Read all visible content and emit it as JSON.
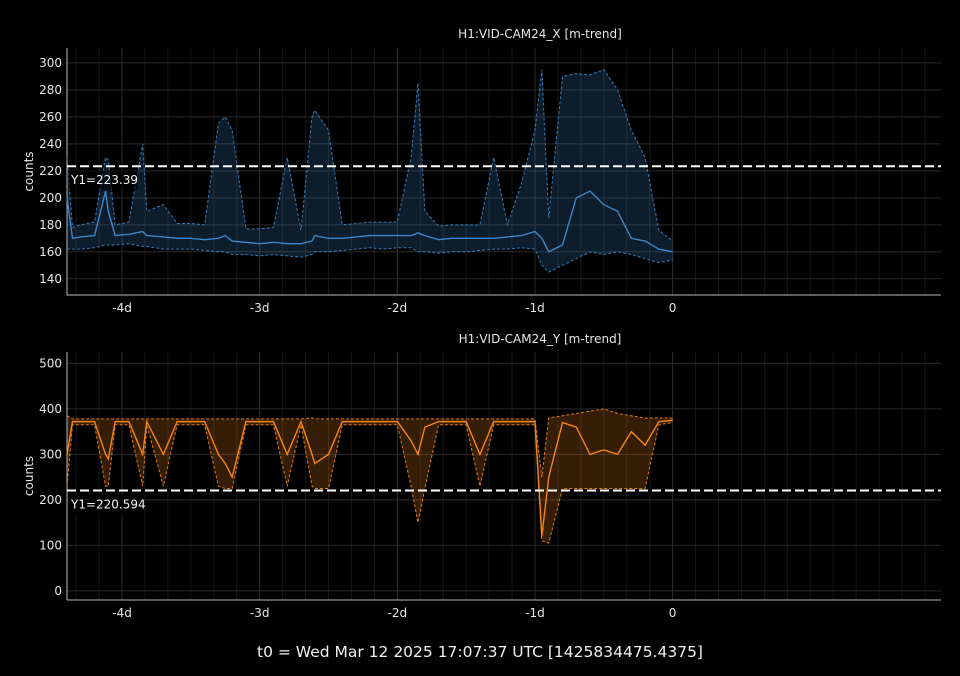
{
  "footer": "t0 = Wed Mar 12 2025 17:07:37 UTC [1425834475.4375]",
  "colors": {
    "x_series": "#3a86c8",
    "y_series": "#f58518",
    "background": "#000000",
    "grid": "#2a2a2a",
    "cursor": "#ffffff"
  },
  "chart_data": [
    {
      "type": "line",
      "title": "H1:VID-CAM24_X [m-trend]",
      "ylabel": "counts",
      "xlabel": "",
      "xlim": [
        -4.4,
        1.95
      ],
      "ylim": [
        128,
        311
      ],
      "x_ticks": [
        {
          "v": -4,
          "label": "-4d"
        },
        {
          "v": -3,
          "label": "-3d"
        },
        {
          "v": -2,
          "label": "-2d"
        },
        {
          "v": -1,
          "label": "-1d"
        },
        {
          "v": 0,
          "label": "0"
        }
      ],
      "y_ticks": [
        140,
        160,
        180,
        200,
        220,
        240,
        260,
        280,
        300
      ],
      "grid": true,
      "cursor": {
        "y": 223.39,
        "label": "Y1=223.39"
      },
      "series": [
        {
          "x": [
            -4.4,
            -4.36,
            -4.3,
            -4.2,
            -4.12,
            -4.1,
            -4.05,
            -3.95,
            -3.85,
            -3.82,
            -3.7,
            -3.6,
            -3.5,
            -3.4,
            -3.3,
            -3.25,
            -3.2,
            -3.1,
            -3.0,
            -2.9,
            -2.8,
            -2.7,
            -2.62,
            -2.6,
            -2.5,
            -2.4,
            -2.3,
            -2.2,
            -2.1,
            -2.0,
            -1.9,
            -1.85,
            -1.8,
            -1.7,
            -1.6,
            -1.5,
            -1.4,
            -1.3,
            -1.2,
            -1.1,
            -1.0,
            -0.95,
            -0.9,
            -0.8,
            -0.7,
            -0.6,
            -0.5,
            -0.4,
            -0.3,
            -0.2,
            -0.1,
            0.0
          ],
          "mean": [
            200,
            170,
            171,
            172,
            205,
            190,
            172,
            173,
            175,
            172,
            171,
            170,
            170,
            169,
            170,
            172,
            168,
            167,
            166,
            167,
            166,
            166,
            168,
            172,
            170,
            170,
            171,
            172,
            172,
            172,
            172,
            174,
            172,
            169,
            170,
            170,
            170,
            170,
            171,
            172,
            175,
            170,
            160,
            165,
            200,
            205,
            195,
            190,
            170,
            168,
            162,
            160
          ],
          "low": [
            162,
            162,
            162,
            163,
            165,
            165,
            165,
            166,
            164,
            164,
            162,
            162,
            162,
            161,
            160,
            160,
            158,
            158,
            157,
            158,
            157,
            156,
            158,
            160,
            160,
            161,
            162,
            163,
            162,
            163,
            163,
            160,
            160,
            159,
            160,
            160,
            161,
            162,
            162,
            163,
            162,
            150,
            145,
            150,
            155,
            160,
            158,
            160,
            158,
            155,
            152,
            154
          ],
          "high": [
            230,
            178,
            180,
            182,
            230,
            228,
            180,
            182,
            240,
            190,
            195,
            181,
            181,
            180,
            255,
            260,
            250,
            177,
            177,
            178,
            230,
            176,
            260,
            265,
            250,
            180,
            181,
            182,
            182,
            182,
            230,
            285,
            190,
            179,
            180,
            180,
            180,
            230,
            180,
            210,
            250,
            295,
            185,
            290,
            292,
            291,
            295,
            280,
            250,
            230,
            176,
            168
          ]
        }
      ]
    },
    {
      "type": "line",
      "title": "H1:VID-CAM24_Y [m-trend]",
      "ylabel": "counts",
      "xlabel": "",
      "xlim": [
        -4.4,
        1.95
      ],
      "ylim": [
        -20,
        525
      ],
      "x_ticks": [
        {
          "v": -4,
          "label": "-4d"
        },
        {
          "v": -3,
          "label": "-3d"
        },
        {
          "v": -2,
          "label": "-2d"
        },
        {
          "v": -1,
          "label": "-1d"
        },
        {
          "v": 0,
          "label": "0"
        }
      ],
      "y_ticks": [
        0,
        100,
        200,
        300,
        400,
        500
      ],
      "grid": true,
      "cursor": {
        "y": 220.594,
        "label": "Y1=220.594"
      },
      "series": [
        {
          "x": [
            -4.4,
            -4.36,
            -4.3,
            -4.2,
            -4.12,
            -4.1,
            -4.05,
            -3.95,
            -3.85,
            -3.82,
            -3.7,
            -3.6,
            -3.5,
            -3.4,
            -3.3,
            -3.25,
            -3.2,
            -3.1,
            -3.0,
            -2.9,
            -2.8,
            -2.7,
            -2.62,
            -2.6,
            -2.5,
            -2.4,
            -2.3,
            -2.2,
            -2.1,
            -2.0,
            -1.9,
            -1.85,
            -1.8,
            -1.7,
            -1.6,
            -1.5,
            -1.4,
            -1.3,
            -1.2,
            -1.1,
            -1.0,
            -0.95,
            -0.9,
            -0.8,
            -0.7,
            -0.6,
            -0.5,
            -0.4,
            -0.3,
            -0.2,
            -0.1,
            0.0
          ],
          "mean": [
            300,
            372,
            372,
            372,
            300,
            290,
            372,
            372,
            300,
            372,
            300,
            372,
            372,
            372,
            300,
            280,
            250,
            372,
            372,
            372,
            300,
            372,
            300,
            280,
            300,
            372,
            372,
            372,
            372,
            372,
            330,
            300,
            360,
            372,
            372,
            372,
            300,
            372,
            372,
            372,
            372,
            120,
            250,
            370,
            360,
            300,
            310,
            300,
            350,
            320,
            372,
            375
          ],
          "low": [
            230,
            365,
            365,
            365,
            230,
            230,
            365,
            365,
            230,
            365,
            230,
            365,
            365,
            365,
            230,
            225,
            225,
            365,
            365,
            365,
            230,
            365,
            230,
            225,
            225,
            365,
            365,
            365,
            365,
            365,
            230,
            150,
            225,
            365,
            365,
            365,
            230,
            365,
            365,
            365,
            365,
            110,
            105,
            225,
            225,
            225,
            225,
            225,
            225,
            225,
            365,
            370
          ],
          "high": [
            385,
            378,
            378,
            378,
            378,
            378,
            378,
            378,
            378,
            378,
            378,
            378,
            378,
            378,
            378,
            378,
            378,
            378,
            378,
            378,
            378,
            378,
            380,
            378,
            378,
            378,
            378,
            378,
            378,
            378,
            378,
            378,
            378,
            378,
            378,
            378,
            378,
            378,
            378,
            378,
            378,
            250,
            380,
            385,
            390,
            395,
            400,
            390,
            385,
            380,
            380,
            380
          ]
        }
      ]
    }
  ]
}
